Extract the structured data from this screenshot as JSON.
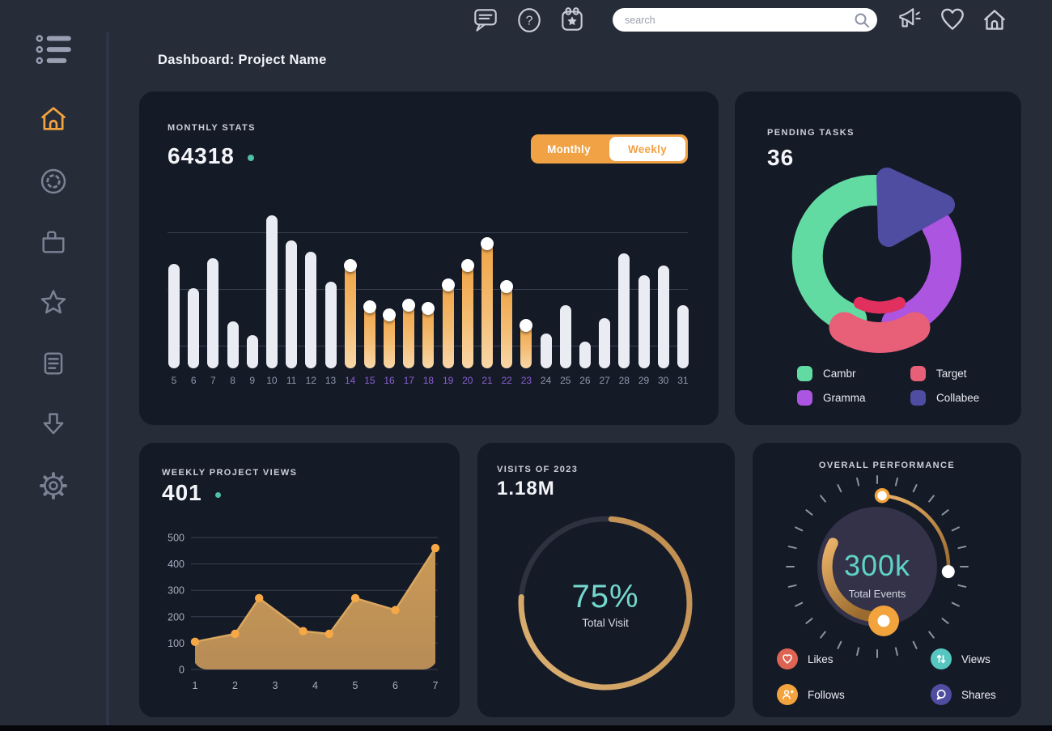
{
  "colors": {
    "background": "#272c39",
    "card_background": "#151a27",
    "accent_orange": "#f0a245",
    "accent_teal": "#74d8cc",
    "teal_dot": "#4fbfa8",
    "bar_default": "#eaecf3",
    "grid_line": "#3a4051",
    "axis_label": "#9097a9",
    "highlight_label": "#8a5ed2",
    "text_primary": "#f2f4f9",
    "text_secondary": "#ccd0dd"
  },
  "topbar": {
    "icons_left": [
      "chat-icon",
      "help-icon",
      "calendar-icon"
    ],
    "search": {
      "placeholder": "search"
    },
    "icons_right": [
      "megaphone-icon",
      "heart-icon",
      "home-icon"
    ]
  },
  "sidebar": {
    "items": [
      {
        "name": "menu",
        "active": false
      },
      {
        "name": "home",
        "active": true
      },
      {
        "name": "dashboard",
        "active": false
      },
      {
        "name": "projects",
        "active": false
      },
      {
        "name": "favorites",
        "active": false
      },
      {
        "name": "notes",
        "active": false
      },
      {
        "name": "downloads",
        "active": false
      },
      {
        "name": "settings",
        "active": false
      }
    ]
  },
  "header": {
    "title": "Dashboard: Project Name"
  },
  "cards": {
    "monthly_stats": {
      "label": "MONTHLY STATS",
      "value": "64318",
      "toggle": {
        "options": [
          "Monthly",
          "Weekly"
        ],
        "selected": "Monthly"
      },
      "chart_data": {
        "type": "bar",
        "categories": [
          5,
          6,
          7,
          8,
          9,
          10,
          11,
          12,
          13,
          14,
          15,
          16,
          17,
          18,
          19,
          20,
          21,
          22,
          23,
          24,
          25,
          26,
          27,
          28,
          29,
          30,
          31
        ],
        "values": [
          66,
          51,
          70,
          30,
          21,
          97,
          81,
          74,
          55,
          66,
          40,
          35,
          41,
          39,
          54,
          66,
          80,
          53,
          28,
          22,
          40,
          17,
          32,
          73,
          59,
          65,
          40
        ],
        "value_unit": "percent_of_plot_height",
        "highlighted_categories": [
          14,
          15,
          16,
          17,
          18,
          19,
          20,
          21,
          22,
          23
        ],
        "bar_color": "#eaecf3",
        "highlight_gradient": [
          "#f0a445",
          "#f8d7a8"
        ],
        "gridlines_pct_from_bottom": [
          85.6,
          49.7,
          13.8
        ]
      }
    },
    "pending_tasks": {
      "label": "PENDING TASKS",
      "value": "36",
      "chart_data": {
        "type": "donut",
        "segments": [
          {
            "label": "Cambr",
            "color": "#62dba2",
            "percent": 38
          },
          {
            "label": "Gramma",
            "color": "#ab55e0",
            "percent": 27
          },
          {
            "label": "Target",
            "color": "#e85f78",
            "percent": 16
          },
          {
            "label": "Collabee",
            "color": "#4f4da2",
            "percent": 19
          }
        ],
        "target_inner_color": "#e1305d"
      },
      "legend": [
        {
          "label": "Cambr",
          "color": "#62dba2"
        },
        {
          "label": "Target",
          "color": "#e85f78"
        },
        {
          "label": "Gramma",
          "color": "#ab55e0"
        },
        {
          "label": "Collabee",
          "color": "#4f4da2"
        }
      ]
    },
    "weekly_views": {
      "label": "WEEKLY PROJECT VIEWS",
      "value": "401",
      "chart_data": {
        "type": "area",
        "x": [
          1,
          2,
          2.6,
          3.7,
          4.35,
          5,
          6,
          7
        ],
        "y": [
          105,
          135,
          270,
          145,
          135,
          270,
          225,
          460
        ],
        "xticks": [
          1,
          2,
          3,
          4,
          5,
          6,
          7
        ],
        "yticks": [
          0,
          100,
          200,
          300,
          400,
          500
        ],
        "ylim": [
          0,
          500
        ],
        "line_color": "#d9a75e",
        "dot_color": "#f5a845",
        "fill_top": "#d4a058",
        "fill_bottom": "#bf9259"
      }
    },
    "visits": {
      "label": "VISITS OF 2023",
      "value": "1.18M",
      "chart_data": {
        "type": "radial_progress",
        "percent": 75,
        "center_label": "75%",
        "sub_label": "Total Visit",
        "arc_colors": [
          "#dcb273",
          "#bd8a4d"
        ],
        "track_color": "#2e3140"
      }
    },
    "performance": {
      "label": "OVERALL PERFORMANCE",
      "chart_data": {
        "type": "gauge",
        "value_label": "300k",
        "sub_label": "Total Events",
        "dial_color": "#343249",
        "arc_colors": [
          "#eab269",
          "#9a6b2e"
        ],
        "knob_color": "#f2a33c"
      },
      "legend": [
        {
          "label": "Likes",
          "icon": "heart-icon",
          "color": "#dd6352"
        },
        {
          "label": "Views",
          "icon": "arrows-up-down-icon",
          "color": "#56c7c0"
        },
        {
          "label": "Follows",
          "icon": "person-add-icon",
          "color": "#f2a33e"
        },
        {
          "label": "Shares",
          "icon": "chat-bubble-icon",
          "color": "#4f4da0"
        }
      ]
    }
  }
}
